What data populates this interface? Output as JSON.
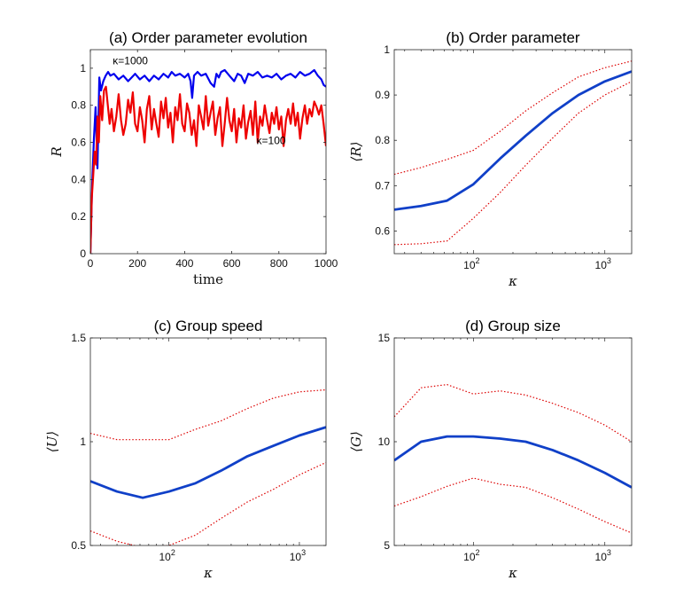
{
  "chart_data": [
    {
      "id": "a",
      "type": "line",
      "title": "(a) Order parameter evolution",
      "xlabel": "time",
      "ylabel": "R",
      "xlim": [
        0,
        1000
      ],
      "ylim": [
        0,
        1.1
      ],
      "xticks": [
        0,
        200,
        400,
        600,
        800,
        1000
      ],
      "xtick_labels": [
        "0",
        "200",
        "400",
        "600",
        "800",
        "1000"
      ],
      "yticks": [
        0,
        0.2,
        0.4,
        0.6,
        0.8,
        1
      ],
      "ytick_labels": [
        "0",
        "0.2",
        "0.4",
        "0.6",
        "0.8",
        "1"
      ],
      "annotations": [
        {
          "text": "κ=1000",
          "x": 95,
          "y": 1.02
        },
        {
          "text": "κ=100",
          "x": 705,
          "y": 0.59
        }
      ],
      "series": [
        {
          "name": "κ=1000",
          "color": "#0000ee",
          "x": [
            0,
            8,
            15,
            22,
            30,
            38,
            45,
            55,
            65,
            75,
            85,
            100,
            120,
            140,
            160,
            175,
            190,
            210,
            230,
            250,
            270,
            290,
            310,
            330,
            345,
            360,
            380,
            400,
            415,
            425,
            432,
            440,
            455,
            470,
            490,
            510,
            525,
            535,
            545,
            555,
            570,
            590,
            610,
            625,
            640,
            655,
            670,
            690,
            710,
            730,
            750,
            770,
            790,
            810,
            830,
            850,
            870,
            890,
            910,
            930,
            950,
            965,
            980,
            990,
            1000
          ],
          "y": [
            0.0,
            0.38,
            0.62,
            0.79,
            0.46,
            0.95,
            0.88,
            0.93,
            0.96,
            0.98,
            0.96,
            0.97,
            0.94,
            0.96,
            0.93,
            0.95,
            0.97,
            0.94,
            0.96,
            0.93,
            0.96,
            0.94,
            0.97,
            0.95,
            0.98,
            0.96,
            0.97,
            0.95,
            0.97,
            0.93,
            0.84,
            0.96,
            0.98,
            0.96,
            0.97,
            0.92,
            0.9,
            0.97,
            0.95,
            0.98,
            0.99,
            0.96,
            0.93,
            0.97,
            0.96,
            0.92,
            0.97,
            0.96,
            0.98,
            0.95,
            0.96,
            0.95,
            0.97,
            0.94,
            0.96,
            0.97,
            0.95,
            0.98,
            0.96,
            0.97,
            0.99,
            0.96,
            0.94,
            0.91,
            0.9
          ]
        },
        {
          "name": "κ=100",
          "color": "#ee0000",
          "x": [
            0,
            6,
            12,
            18,
            24,
            30,
            36,
            42,
            50,
            58,
            66,
            74,
            82,
            90,
            100,
            110,
            120,
            130,
            140,
            150,
            160,
            170,
            180,
            190,
            200,
            210,
            220,
            230,
            240,
            250,
            260,
            270,
            280,
            290,
            300,
            310,
            320,
            330,
            340,
            350,
            360,
            370,
            380,
            390,
            400,
            410,
            420,
            430,
            440,
            450,
            460,
            470,
            480,
            490,
            500,
            510,
            520,
            530,
            540,
            550,
            560,
            570,
            580,
            590,
            600,
            610,
            620,
            630,
            640,
            650,
            660,
            670,
            680,
            690,
            700,
            710,
            720,
            730,
            740,
            750,
            760,
            770,
            780,
            790,
            800,
            810,
            820,
            830,
            840,
            850,
            860,
            870,
            880,
            890,
            900,
            910,
            920,
            930,
            940,
            950,
            960,
            970,
            980,
            990,
            1000
          ],
          "y": [
            0.0,
            0.3,
            0.42,
            0.55,
            0.48,
            0.74,
            0.6,
            0.85,
            0.72,
            0.88,
            0.9,
            0.8,
            0.7,
            0.78,
            0.66,
            0.74,
            0.86,
            0.72,
            0.64,
            0.7,
            0.83,
            0.76,
            0.87,
            0.7,
            0.66,
            0.79,
            0.72,
            0.6,
            0.78,
            0.85,
            0.67,
            0.78,
            0.7,
            0.63,
            0.82,
            0.73,
            0.84,
            0.68,
            0.76,
            0.6,
            0.79,
            0.72,
            0.86,
            0.7,
            0.66,
            0.81,
            0.76,
            0.64,
            0.72,
            0.58,
            0.8,
            0.74,
            0.67,
            0.85,
            0.69,
            0.76,
            0.82,
            0.64,
            0.73,
            0.79,
            0.58,
            0.7,
            0.84,
            0.72,
            0.66,
            0.78,
            0.6,
            0.73,
            0.68,
            0.8,
            0.62,
            0.71,
            0.77,
            0.64,
            0.82,
            0.6,
            0.74,
            0.69,
            0.8,
            0.72,
            0.65,
            0.76,
            0.7,
            0.79,
            0.67,
            0.74,
            0.58,
            0.72,
            0.78,
            0.7,
            0.81,
            0.69,
            0.76,
            0.62,
            0.73,
            0.8,
            0.7,
            0.78,
            0.74,
            0.82,
            0.79,
            0.75,
            0.8,
            0.7,
            0.58
          ]
        }
      ]
    },
    {
      "id": "b",
      "type": "line",
      "title": "(b) Order parameter",
      "xlabel": "κ",
      "ylabel": "⟨R⟩",
      "xscale": "log",
      "xlim": [
        25,
        1600
      ],
      "ylim": [
        0.55,
        1.0
      ],
      "xtick_labels": [
        {
          "base": "10",
          "exp": "2",
          "value": 100
        },
        {
          "base": "10",
          "exp": "3",
          "value": 1000
        }
      ],
      "yticks": [
        0.6,
        0.7,
        0.8,
        0.9,
        1
      ],
      "ytick_labels": [
        "0.6",
        "0.7",
        "0.8",
        "0.9",
        "1"
      ],
      "series": [
        {
          "name": "mean",
          "color": "#1040c8",
          "style": "solid",
          "x": [
            25,
            40,
            63,
            100,
            160,
            250,
            400,
            630,
            1000,
            1600
          ],
          "y": [
            0.647,
            0.655,
            0.667,
            0.703,
            0.76,
            0.81,
            0.86,
            0.9,
            0.93,
            0.952
          ]
        },
        {
          "name": "upper",
          "color": "#dd0000",
          "style": "dotted",
          "x": [
            25,
            40,
            63,
            100,
            160,
            250,
            400,
            630,
            1000,
            1600
          ],
          "y": [
            0.725,
            0.74,
            0.758,
            0.778,
            0.82,
            0.865,
            0.905,
            0.94,
            0.96,
            0.975
          ]
        },
        {
          "name": "lower",
          "color": "#dd0000",
          "style": "dotted",
          "x": [
            25,
            40,
            63,
            100,
            160,
            250,
            400,
            630,
            1000,
            1600
          ],
          "y": [
            0.57,
            0.572,
            0.578,
            0.628,
            0.685,
            0.745,
            0.805,
            0.86,
            0.9,
            0.93
          ]
        }
      ]
    },
    {
      "id": "c",
      "type": "line",
      "title": "(c) Group speed",
      "xlabel": "κ",
      "ylabel": "⟨U⟩",
      "xscale": "log",
      "xlim": [
        25,
        1600
      ],
      "ylim": [
        0.5,
        1.5
      ],
      "xtick_labels": [
        {
          "base": "10",
          "exp": "2",
          "value": 100
        },
        {
          "base": "10",
          "exp": "3",
          "value": 1000
        }
      ],
      "yticks": [
        0.5,
        1,
        1.5
      ],
      "ytick_labels": [
        "0.5",
        "1",
        "1.5"
      ],
      "series": [
        {
          "name": "mean",
          "color": "#1040c8",
          "style": "solid",
          "x": [
            25,
            40,
            63,
            100,
            160,
            250,
            400,
            630,
            1000,
            1600
          ],
          "y": [
            0.81,
            0.76,
            0.73,
            0.76,
            0.8,
            0.86,
            0.93,
            0.98,
            1.03,
            1.07
          ]
        },
        {
          "name": "upper",
          "color": "#dd0000",
          "style": "dotted",
          "x": [
            25,
            40,
            63,
            100,
            160,
            250,
            400,
            630,
            1000,
            1600
          ],
          "y": [
            1.04,
            1.01,
            1.01,
            1.01,
            1.06,
            1.1,
            1.16,
            1.21,
            1.24,
            1.25
          ]
        },
        {
          "name": "lower",
          "color": "#dd0000",
          "style": "dotted",
          "x": [
            25,
            40,
            63,
            100,
            160,
            250,
            400,
            630,
            1000,
            1600
          ],
          "y": [
            0.57,
            0.52,
            0.49,
            0.5,
            0.55,
            0.63,
            0.71,
            0.77,
            0.84,
            0.9
          ]
        }
      ]
    },
    {
      "id": "d",
      "type": "line",
      "title": "(d) Group size",
      "xlabel": "κ",
      "ylabel": "⟨G⟩",
      "xscale": "log",
      "xlim": [
        25,
        1600
      ],
      "ylim": [
        5,
        15
      ],
      "xtick_labels": [
        {
          "base": "10",
          "exp": "2",
          "value": 100
        },
        {
          "base": "10",
          "exp": "3",
          "value": 1000
        }
      ],
      "yticks": [
        5,
        10,
        15
      ],
      "ytick_labels": [
        "5",
        "10",
        "15"
      ],
      "series": [
        {
          "name": "mean",
          "color": "#1040c8",
          "style": "solid",
          "x": [
            25,
            40,
            63,
            100,
            160,
            250,
            400,
            630,
            1000,
            1600
          ],
          "y": [
            9.1,
            10.0,
            10.25,
            10.25,
            10.15,
            10.0,
            9.6,
            9.1,
            8.5,
            7.8
          ]
        },
        {
          "name": "upper",
          "color": "#dd0000",
          "style": "dotted",
          "x": [
            25,
            40,
            63,
            100,
            160,
            250,
            400,
            630,
            1000,
            1600
          ],
          "y": [
            11.2,
            12.6,
            12.75,
            12.3,
            12.45,
            12.25,
            11.85,
            11.4,
            10.8,
            10.0
          ]
        },
        {
          "name": "lower",
          "color": "#dd0000",
          "style": "dotted",
          "x": [
            25,
            40,
            63,
            100,
            160,
            250,
            400,
            630,
            1000,
            1600
          ],
          "y": [
            6.9,
            7.35,
            7.85,
            8.25,
            7.95,
            7.8,
            7.3,
            6.75,
            6.15,
            5.6
          ]
        }
      ]
    }
  ]
}
